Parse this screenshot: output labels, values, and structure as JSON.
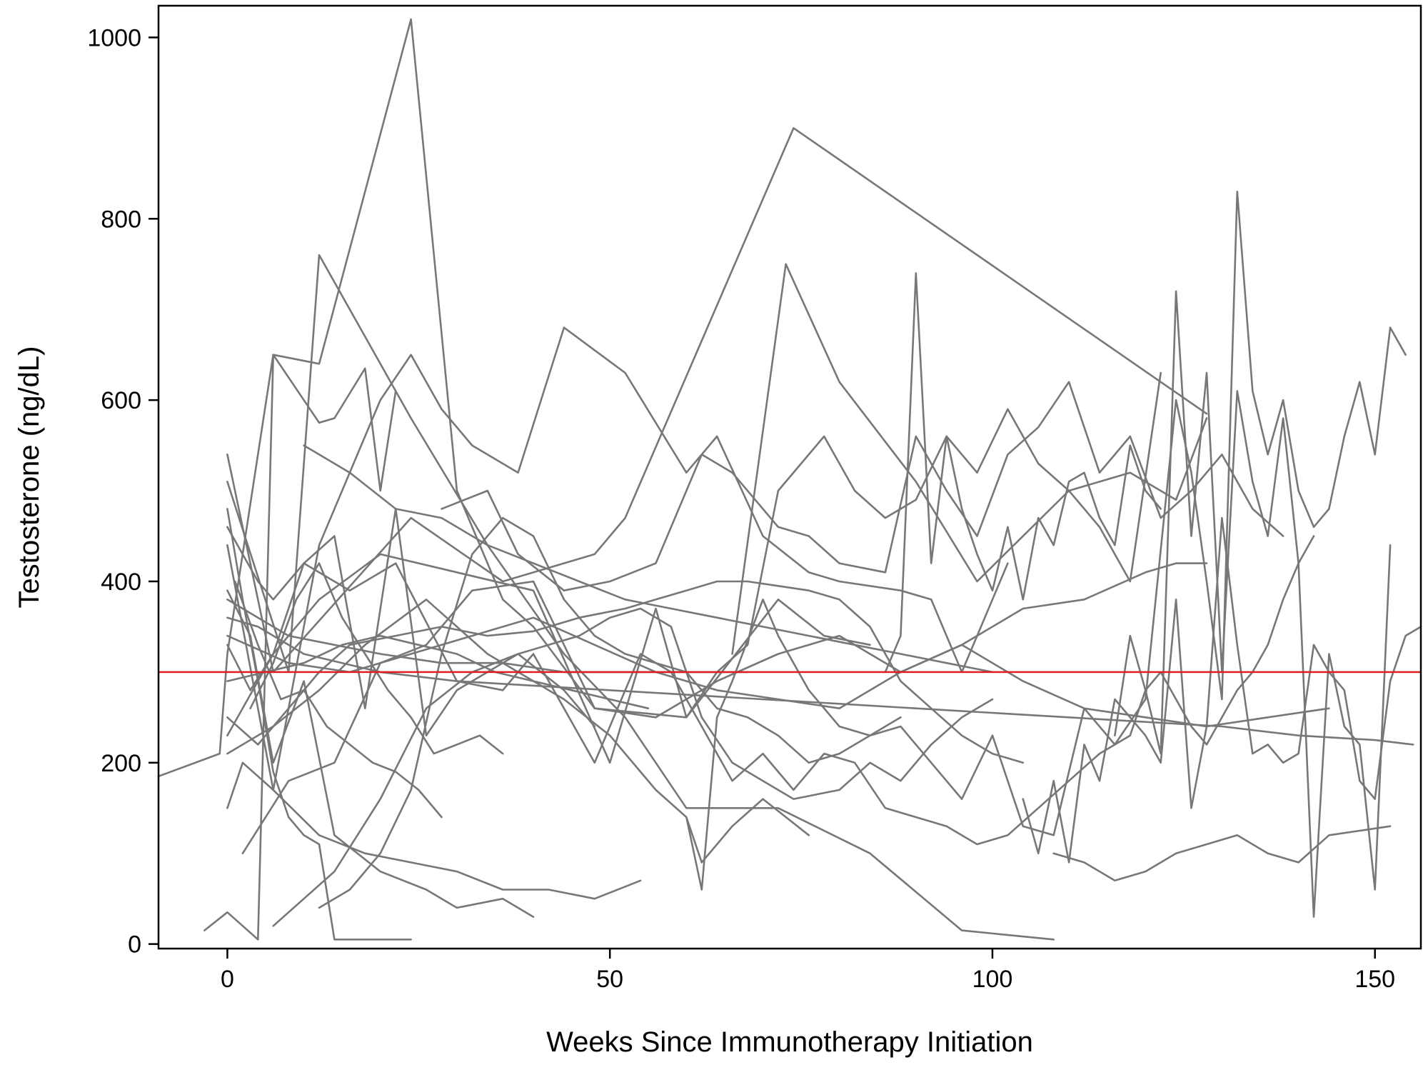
{
  "chart_data": {
    "type": "line",
    "xlabel": "Weeks Since Immunotherapy Initiation",
    "ylabel": "Testosterone (ng/dL)",
    "xlim": [
      -9,
      156
    ],
    "ylim": [
      -5,
      1035
    ],
    "x_ticks": [
      0,
      50,
      100,
      150
    ],
    "y_ticks": [
      0,
      200,
      400,
      600,
      800,
      1000
    ],
    "grid": false,
    "legend": "none",
    "series_color": "#777777",
    "reference_line": {
      "y": 300,
      "color": "#e02020"
    },
    "series": [
      {
        "x": [
          -9,
          -1,
          0,
          6,
          12,
          24,
          30,
          36,
          40,
          48,
          60,
          72,
          78,
          84
        ],
        "y": [
          185,
          210,
          320,
          650,
          640,
          1020,
          500,
          380,
          350,
          260,
          250,
          380,
          340,
          330
        ]
      },
      {
        "x": [
          0,
          6,
          24,
          36,
          48,
          52,
          74,
          128
        ],
        "y": [
          540,
          300,
          470,
          400,
          430,
          470,
          900,
          585
        ]
      },
      {
        "x": [
          0,
          8,
          12,
          24,
          34,
          44,
          52,
          60,
          72,
          84,
          96,
          108
        ],
        "y": [
          510,
          300,
          760,
          580,
          440,
          320,
          250,
          150,
          150,
          100,
          15,
          5
        ]
      },
      {
        "x": [
          -3,
          0,
          4,
          6,
          12,
          14,
          18,
          20,
          22
        ],
        "y": [
          15,
          35,
          5,
          650,
          575,
          580,
          635,
          500,
          610
        ]
      },
      {
        "x": [
          0,
          6,
          12,
          20,
          24,
          28,
          32,
          38,
          44,
          52,
          60,
          64,
          70,
          76,
          80,
          88,
          92,
          96,
          102
        ],
        "y": [
          440,
          170,
          440,
          600,
          650,
          590,
          550,
          520,
          680,
          630,
          520,
          560,
          450,
          410,
          400,
          390,
          380,
          300,
          420
        ]
      },
      {
        "x": [
          0,
          3,
          6,
          12,
          20,
          30,
          40,
          50,
          56,
          60,
          64,
          68,
          72,
          78,
          82,
          86,
          90,
          94,
          98,
          102,
          106,
          110,
          114,
          118,
          122
        ],
        "y": [
          330,
          280,
          320,
          380,
          430,
          410,
          390,
          200,
          370,
          250,
          300,
          330,
          500,
          560,
          500,
          470,
          490,
          560,
          520,
          590,
          530,
          500,
          460,
          400,
          630
        ]
      },
      {
        "x": [
          66,
          73,
          80,
          90,
          98,
          110,
          118,
          124,
          128
        ],
        "y": [
          320,
          750,
          620,
          510,
          400,
          500,
          520,
          490,
          580
        ]
      },
      {
        "x": [
          0,
          3,
          6,
          10,
          14,
          20,
          26,
          30,
          36,
          40
        ],
        "y": [
          390,
          340,
          200,
          290,
          120,
          80,
          60,
          40,
          50,
          30
        ]
      },
      {
        "x": [
          0,
          4,
          6,
          10,
          14,
          18,
          22,
          26,
          30,
          34,
          38,
          42,
          46,
          50,
          54,
          58,
          62,
          66,
          70,
          74,
          80,
          84,
          88,
          92,
          96,
          100
        ],
        "y": [
          460,
          400,
          380,
          420,
          450,
          260,
          480,
          230,
          280,
          300,
          320,
          330,
          340,
          360,
          370,
          350,
          250,
          200,
          180,
          160,
          170,
          200,
          180,
          220,
          250,
          270
        ]
      },
      {
        "x": [
          0,
          2,
          6,
          12,
          18,
          24,
          30,
          36,
          42,
          48,
          54
        ],
        "y": [
          150,
          200,
          170,
          120,
          100,
          90,
          80,
          60,
          60,
          50,
          70
        ]
      },
      {
        "x": [
          0,
          4,
          8,
          12,
          16,
          22,
          28,
          34,
          40,
          46,
          52,
          56,
          60,
          64,
          68,
          72,
          76,
          80,
          84,
          88,
          92,
          96,
          100,
          104
        ],
        "y": [
          250,
          220,
          260,
          300,
          330,
          340,
          350,
          340,
          345,
          360,
          370,
          380,
          390,
          400,
          400,
          395,
          390,
          380,
          350,
          290,
          260,
          230,
          210,
          200
        ]
      },
      {
        "x": [
          0,
          6,
          12,
          18,
          26,
          34,
          44,
          50,
          56,
          60,
          62,
          66,
          70,
          76
        ],
        "y": [
          210,
          240,
          280,
          330,
          380,
          320,
          270,
          230,
          170,
          140,
          90,
          130,
          160,
          120
        ]
      },
      {
        "x": [
          0,
          4,
          8,
          14,
          20,
          28,
          36,
          44,
          52,
          60,
          68
        ],
        "y": [
          380,
          360,
          340,
          330,
          320,
          310,
          310,
          300,
          300,
          300,
          300
        ]
      },
      {
        "x": [
          2,
          8,
          14,
          20,
          26,
          32,
          40,
          48,
          56,
          64,
          72,
          80,
          88,
          96,
          104,
          112,
          120,
          124,
          128
        ],
        "y": [
          100,
          180,
          200,
          310,
          330,
          390,
          400,
          260,
          250,
          290,
          320,
          340,
          300,
          330,
          370,
          380,
          410,
          420,
          420
        ]
      },
      {
        "x": [
          0,
          6,
          10,
          16,
          22,
          30,
          36,
          40,
          44,
          48,
          54,
          58,
          62,
          66,
          70,
          74,
          78,
          82,
          86,
          90,
          94,
          98,
          102,
          106,
          110,
          114,
          118,
          120,
          122,
          124,
          126,
          128,
          130,
          132,
          134,
          136,
          138,
          140,
          142
        ],
        "y": [
          230,
          320,
          420,
          390,
          420,
          290,
          280,
          320,
          260,
          200,
          320,
          300,
          240,
          180,
          210,
          170,
          210,
          200,
          150,
          140,
          130,
          110,
          120,
          150,
          180,
          210,
          230,
          280,
          300,
          270,
          240,
          220,
          250,
          280,
          300,
          330,
          380,
          420,
          450
        ]
      },
      {
        "x": [
          0,
          4,
          10,
          20,
          30,
          40,
          50,
          60,
          70,
          80,
          90,
          100,
          110,
          120,
          130,
          140,
          150,
          155
        ],
        "y": [
          360,
          350,
          320,
          300,
          290,
          285,
          280,
          275,
          270,
          265,
          260,
          255,
          250,
          245,
          240,
          230,
          225,
          220
        ]
      },
      {
        "x": [
          60,
          62,
          64,
          66,
          70,
          72,
          76,
          80,
          84,
          88,
          92,
          96,
          100,
          104,
          108,
          112,
          116,
          120,
          124,
          126,
          128,
          130,
          132,
          134,
          136,
          138,
          140,
          142,
          144,
          146,
          148,
          150,
          152,
          154
        ],
        "y": [
          140,
          60,
          250,
          290,
          380,
          340,
          280,
          240,
          230,
          240,
          200,
          160,
          230,
          130,
          120,
          260,
          220,
          270,
          600,
          520,
          400,
          270,
          830,
          610,
          540,
          600,
          500,
          460,
          480,
          560,
          620,
          540,
          680,
          650
        ]
      },
      {
        "x": [
          116,
          118,
          120,
          122,
          124,
          126,
          128,
          130,
          132,
          134,
          136,
          138,
          140,
          142,
          144,
          146,
          148,
          150,
          152
        ],
        "y": [
          230,
          340,
          280,
          210,
          720,
          450,
          630,
          300,
          610,
          510,
          450,
          580,
          420,
          30,
          320,
          240,
          220,
          60,
          440
        ]
      },
      {
        "x": [
          104,
          106,
          108,
          110,
          112,
          114,
          116,
          118,
          120,
          122,
          124,
          126,
          128,
          130,
          132,
          134,
          136,
          138,
          140,
          142,
          144,
          146,
          148,
          150,
          152,
          154,
          156
        ],
        "y": [
          160,
          100,
          180,
          90,
          220,
          180,
          270,
          250,
          230,
          200,
          380,
          150,
          240,
          470,
          330,
          210,
          220,
          200,
          210,
          330,
          300,
          280,
          180,
          160,
          290,
          340,
          350
        ]
      },
      {
        "x": [
          108,
          112,
          116,
          120,
          124,
          128,
          132,
          136,
          140,
          144,
          148,
          152
        ],
        "y": [
          100,
          90,
          70,
          80,
          100,
          110,
          120,
          100,
          90,
          120,
          125,
          130
        ]
      },
      {
        "x": [
          28,
          34,
          38,
          44,
          50,
          56,
          62,
          66,
          72,
          76,
          80,
          86,
          90,
          94,
          98,
          102,
          106,
          110,
          114,
          118,
          122,
          126,
          130,
          134,
          138
        ],
        "y": [
          480,
          500,
          430,
          390,
          400,
          420,
          540,
          520,
          460,
          450,
          420,
          410,
          560,
          500,
          450,
          540,
          570,
          620,
          520,
          560,
          470,
          500,
          540,
          480,
          450
        ]
      },
      {
        "x": [
          0,
          8,
          16,
          24,
          32,
          40,
          48,
          56,
          64,
          72,
          80,
          88,
          96,
          104,
          112,
          120,
          128,
          136,
          144
        ],
        "y": [
          340,
          310,
          300,
          320,
          340,
          360,
          330,
          300,
          280,
          270,
          260,
          300,
          330,
          290,
          260,
          250,
          240,
          250,
          260
        ]
      },
      {
        "x": [
          10,
          16,
          22,
          28,
          34,
          40,
          46,
          52,
          58,
          64,
          70,
          76,
          82,
          88,
          94,
          100
        ],
        "y": [
          550,
          520,
          480,
          470,
          440,
          420,
          400,
          380,
          370,
          360,
          350,
          340,
          330,
          320,
          310,
          300
        ]
      },
      {
        "x": [
          6,
          10,
          14,
          20,
          26,
          32,
          38,
          44,
          48
        ],
        "y": [
          20,
          50,
          80,
          160,
          260,
          300,
          320,
          280,
          240
        ]
      },
      {
        "x": [
          12,
          16,
          20,
          24,
          28,
          32,
          36,
          40,
          44,
          48,
          52,
          56,
          60,
          64,
          68,
          72,
          76,
          80,
          84,
          88
        ],
        "y": [
          40,
          60,
          100,
          170,
          320,
          430,
          470,
          450,
          380,
          340,
          320,
          310,
          300,
          260,
          250,
          230,
          200,
          210,
          230,
          250
        ]
      },
      {
        "x": [
          0,
          2,
          4,
          6,
          8,
          10,
          12,
          14,
          16,
          18,
          20,
          22,
          24
        ],
        "y": [
          480,
          380,
          290,
          190,
          140,
          120,
          110,
          5,
          5,
          5,
          5,
          5,
          5
        ]
      },
      {
        "x": [
          1,
          4,
          7,
          10,
          13,
          16,
          19,
          22,
          25,
          28
        ],
        "y": [
          400,
          330,
          270,
          280,
          240,
          220,
          200,
          190,
          170,
          140
        ]
      },
      {
        "x": [
          3,
          6,
          9,
          12,
          15,
          18,
          21,
          24,
          27,
          30,
          33,
          36
        ],
        "y": [
          260,
          310,
          380,
          420,
          360,
          320,
          280,
          250,
          210,
          220,
          230,
          210
        ]
      },
      {
        "x": [
          0,
          5,
          10,
          15,
          20,
          25,
          30,
          35,
          40,
          45,
          50,
          55
        ],
        "y": [
          290,
          300,
          310,
          330,
          340,
          330,
          320,
          300,
          290,
          280,
          270,
          260
        ]
      },
      {
        "x": [
          86,
          88,
          90,
          92,
          94,
          96,
          98,
          100,
          102,
          104,
          106,
          108,
          110,
          112,
          114,
          116,
          118,
          120,
          122
        ],
        "y": [
          300,
          340,
          740,
          420,
          560,
          480,
          430,
          390,
          460,
          380,
          470,
          440,
          510,
          520,
          470,
          440,
          550,
          500,
          480
        ]
      }
    ]
  }
}
